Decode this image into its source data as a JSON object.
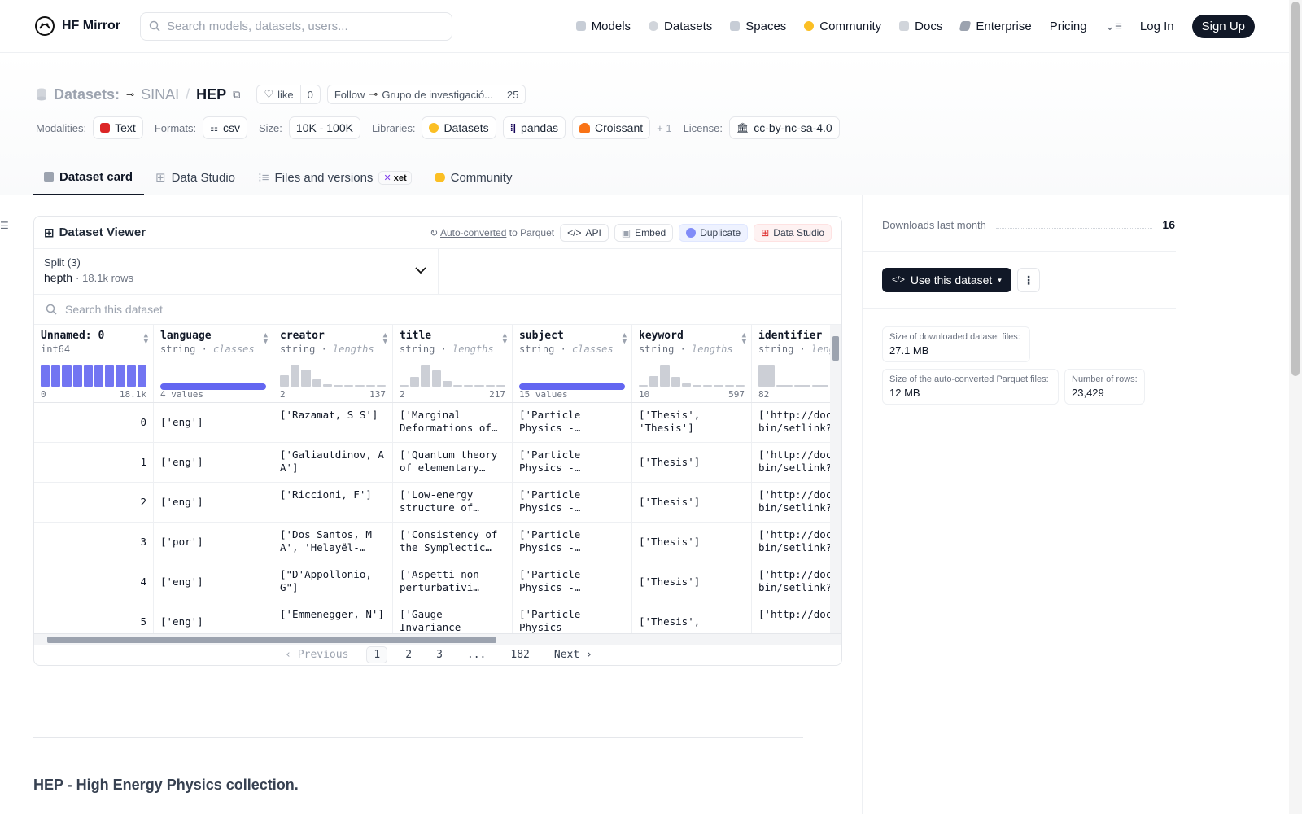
{
  "nav": {
    "brand": "HF Mirror",
    "search_placeholder": "Search models, datasets, users...",
    "links": [
      "Models",
      "Datasets",
      "Spaces",
      "Community",
      "Docs",
      "Enterprise",
      "Pricing"
    ],
    "login": "Log In",
    "signup": "Sign Up"
  },
  "header": {
    "datasets_label": "Datasets:",
    "owner": "SINAI",
    "name": "HEP",
    "like_label": "like",
    "like_count": "0",
    "follow_label": "Follow",
    "org_name": "Grupo de investigació...",
    "follow_count": "25",
    "modalities_label": "Modalities:",
    "modality": "Text",
    "formats_label": "Formats:",
    "format": "csv",
    "size_label": "Size:",
    "size": "10K - 100K",
    "libraries_label": "Libraries:",
    "libraries": [
      "Datasets",
      "pandas",
      "Croissant"
    ],
    "libraries_more": "+ 1",
    "license_label": "License:",
    "license": "cc-by-nc-sa-4.0"
  },
  "tabs": {
    "dataset_card": "Dataset card",
    "data_studio": "Data Studio",
    "files": "Files and versions",
    "xet": "xet",
    "community": "Community"
  },
  "viewer": {
    "title": "Dataset Viewer",
    "auto_converted": "Auto-converted",
    "to_parquet": "to Parquet",
    "api": "API",
    "embed": "Embed",
    "duplicate": "Duplicate",
    "data_studio": "Data Studio",
    "split_label": "Split (3)",
    "split_name": "hepth",
    "split_rows": "18.1k rows",
    "search_placeholder": "Search this dataset",
    "columns": [
      {
        "name": "Unnamed: 0",
        "type": "int64",
        "stat": "",
        "min": "0",
        "max": "18.1k"
      },
      {
        "name": "language",
        "type": "string",
        "stat": "classes",
        "min": "4 values",
        "max": ""
      },
      {
        "name": "creator",
        "type": "string",
        "stat": "lengths",
        "min": "2",
        "max": "137"
      },
      {
        "name": "title",
        "type": "string",
        "stat": "lengths",
        "min": "2",
        "max": "217"
      },
      {
        "name": "subject",
        "type": "string",
        "stat": "classes",
        "min": "15 values",
        "max": ""
      },
      {
        "name": "keyword",
        "type": "string",
        "stat": "lengths",
        "min": "10",
        "max": "597"
      },
      {
        "name": "identifier",
        "type": "string",
        "stat": "leng",
        "min": "82",
        "max": ""
      }
    ],
    "rows": [
      [
        "0",
        "['eng']",
        "['Razamat, S S']",
        "['Marginal Deformations of…",
        "['Particle Physics - Theory']",
        "['Thesis', 'Thesis']",
        "['http://docu bin/setlink?…"
      ],
      [
        "1",
        "['eng']",
        "['Galiautdinov, A A']",
        "['Quantum theory of elementary…",
        "['Particle Physics - Theory']",
        "['Thesis']",
        "['http://docu bin/setlink?…"
      ],
      [
        "2",
        "['eng']",
        "['Riccioni, F']",
        "['Low-energy structure of six-…",
        "['Particle Physics - Theory']",
        "['Thesis']",
        "['http://docu bin/setlink?…"
      ],
      [
        "3",
        "['por']",
        "['Dos Santos, M A', 'Helayël-Neto…",
        "['Consistency of the Symplectic…",
        "['Particle Physics - Theory']",
        "['Thesis']",
        "['http://docu bin/setlink?…"
      ],
      [
        "4",
        "['eng']",
        "[\"D'Appollonio, G\"]",
        "['Aspetti non perturbativi dell…",
        "['Particle Physics - Theory']",
        "['Thesis']",
        "['http://docu bin/setlink?…"
      ],
      [
        "5",
        "['eng']",
        "['Emmenegger, N']",
        "['Gauge Invariance",
        "['Particle Physics",
        "['Thesis',",
        "['http://docu"
      ]
    ],
    "pager": {
      "prev": "Previous",
      "pages": [
        "1",
        "2",
        "3",
        "...",
        "182"
      ],
      "next": "Next"
    }
  },
  "card": {
    "heading": "HEP - High Energy Physics collection."
  },
  "sidebar": {
    "downloads_label": "Downloads last month",
    "downloads_value": "16",
    "use_button": "Use this dataset",
    "stats": [
      {
        "label": "Size of downloaded dataset files:",
        "value": "27.1 MB"
      },
      {
        "label": "Size of the auto-converted Parquet files:",
        "value": "12 MB"
      },
      {
        "label": "Number of rows:",
        "value": "23,429"
      }
    ]
  },
  "histograms": {
    "unnamed_0": [
      1,
      1,
      1,
      1,
      1,
      1,
      1,
      1,
      1,
      1
    ],
    "creator": [
      0.55,
      1,
      0.8,
      0.35,
      0.12,
      0.05,
      0.05,
      0.05,
      0.05,
      0.05
    ],
    "title": [
      0.05,
      0.45,
      1,
      0.75,
      0.25,
      0.08,
      0.05,
      0.05,
      0.05,
      0.05
    ],
    "keyword": [
      0.05,
      0.5,
      1,
      0.45,
      0.15,
      0.05,
      0.05,
      0.05,
      0.05,
      0.05
    ],
    "identifier": [
      1,
      0.05,
      0.05,
      0.05,
      0.05,
      0.05
    ]
  },
  "colors": {
    "accent": "#6366f1",
    "dark": "#111827"
  }
}
